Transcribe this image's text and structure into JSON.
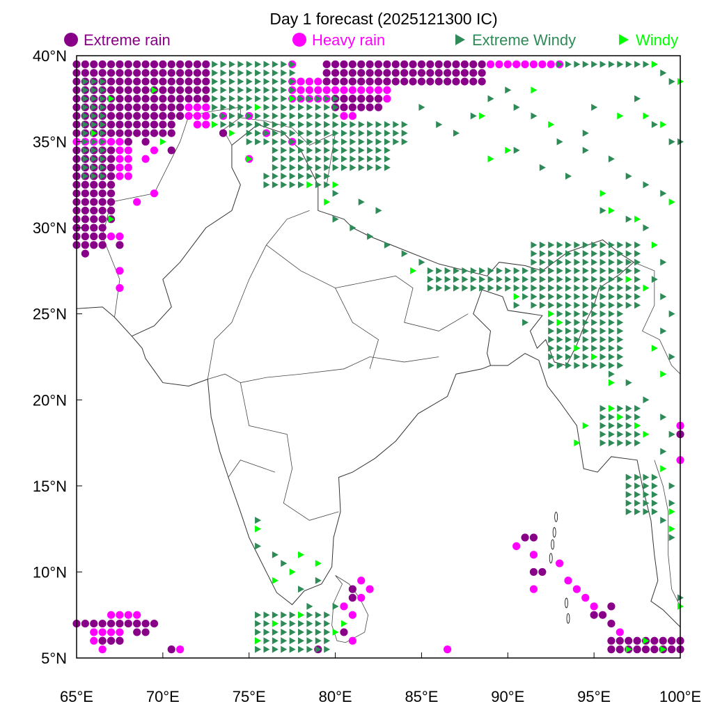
{
  "title": "Day 1 forecast (2025121300 IC)",
  "legend": [
    {
      "label": "Extreme rain",
      "shape": "circle",
      "color": "#880088"
    },
    {
      "label": "Heavy rain",
      "shape": "circle",
      "color": "#FF00FF"
    },
    {
      "label": "Extreme Windy",
      "shape": "triangle-right",
      "color": "#2E8B57"
    },
    {
      "label": "Windy",
      "shape": "triangle-right",
      "color": "#00FF00"
    }
  ],
  "axes": {
    "lon_range": [
      65,
      100
    ],
    "lat_range": [
      5,
      40
    ],
    "x_ticks": [
      "65°E",
      "70°E",
      "75°E",
      "80°E",
      "85°E",
      "90°E",
      "95°E",
      "100°E"
    ],
    "x_tick_values": [
      65,
      70,
      75,
      80,
      85,
      90,
      95,
      100
    ],
    "y_ticks": [
      "5°N",
      "10°N",
      "15°N",
      "20°N",
      "25°N",
      "30°N",
      "35°N",
      "40°N"
    ],
    "y_tick_values": [
      5,
      10,
      15,
      20,
      25,
      30,
      35,
      40
    ]
  },
  "markers": {
    "grid_step_deg": 0.5,
    "heavy_rain": {
      "blocks": [
        [
          77.5,
          83,
          37.5,
          38.5
        ],
        [
          89,
          93,
          39.5,
          39.5
        ],
        [
          67,
          68.5,
          7.5,
          7.5
        ],
        [
          66,
          67.5,
          6,
          6.5
        ],
        [
          65,
          68,
          33,
          35
        ],
        [
          70,
          72.5,
          36.5,
          37
        ]
      ],
      "points": [
        [
          77.5,
          39.5
        ],
        [
          67.5,
          27.5
        ],
        [
          67.5,
          26.5
        ],
        [
          68.5,
          31.5
        ],
        [
          69.5,
          32
        ],
        [
          66.5,
          29
        ],
        [
          67,
          29.5
        ],
        [
          67.5,
          29.5
        ],
        [
          71,
          5.5
        ],
        [
          66.5,
          5.5
        ],
        [
          86.5,
          5.5
        ],
        [
          81.5,
          9.5
        ],
        [
          80.5,
          8
        ],
        [
          81,
          7.5
        ],
        [
          81.5,
          8.5
        ],
        [
          81,
          6
        ],
        [
          82,
          9
        ],
        [
          90.5,
          11.5
        ],
        [
          91.5,
          11
        ],
        [
          91.5,
          9
        ],
        [
          93,
          10.5
        ],
        [
          93.5,
          9.5
        ],
        [
          94,
          9
        ],
        [
          94.5,
          8.5
        ],
        [
          95,
          8
        ],
        [
          96.5,
          6.5
        ],
        [
          99.5,
          6
        ],
        [
          100,
          6
        ],
        [
          100,
          16.5
        ],
        [
          100,
          18.5
        ],
        [
          75,
          34
        ],
        [
          75,
          36.5
        ],
        [
          73.5,
          36.5
        ],
        [
          76,
          35.5
        ],
        [
          77.5,
          35
        ],
        [
          72,
          36
        ],
        [
          72.5,
          36
        ],
        [
          80.5,
          36.5
        ],
        [
          81,
          36.5
        ],
        [
          69,
          34
        ],
        [
          69.5,
          34.5
        ],
        [
          68.5,
          7
        ]
      ]
    },
    "extreme_rain": {
      "blocks": [
        [
          65,
          72.5,
          37.5,
          39.5
        ],
        [
          65,
          71,
          36.5,
          37
        ],
        [
          65,
          70.5,
          35.5,
          36
        ],
        [
          65,
          67,
          30.5,
          34.5
        ],
        [
          65,
          66.5,
          29,
          30
        ],
        [
          79.5,
          88.5,
          38.5,
          39.5
        ],
        [
          80,
          82.5,
          37,
          37.5
        ],
        [
          65,
          69.5,
          7,
          7
        ],
        [
          66.5,
          67.5,
          6,
          6
        ],
        [
          96,
          100,
          5.5,
          6
        ]
      ],
      "points": [
        [
          65.5,
          28.5
        ],
        [
          70.5,
          34.5
        ],
        [
          67.5,
          29
        ],
        [
          81,
          9
        ],
        [
          81,
          8.5
        ],
        [
          80.5,
          6.5
        ],
        [
          79,
          5.5
        ],
        [
          70.5,
          5.5
        ],
        [
          91.5,
          12
        ],
        [
          91,
          12
        ],
        [
          91.5,
          10
        ],
        [
          92,
          10
        ],
        [
          96,
          8
        ],
        [
          95.5,
          7.5
        ],
        [
          95,
          7.5
        ],
        [
          96,
          7
        ],
        [
          99,
          5.5
        ],
        [
          100,
          18
        ],
        [
          68.5,
          6.5
        ],
        [
          69,
          6.5
        ],
        [
          73.5,
          35.5
        ],
        [
          69,
          35
        ],
        [
          68,
          35
        ]
      ]
    },
    "extreme_windy": {
      "blocks": [
        [
          73,
          77.5,
          38,
          39.5
        ],
        [
          73,
          80,
          36,
          37.5
        ],
        [
          75,
          84,
          35,
          36
        ],
        [
          76.5,
          83,
          33.5,
          34.5
        ],
        [
          76,
          79.5,
          32.5,
          33
        ],
        [
          85.5,
          93,
          26.5,
          27.5
        ],
        [
          91.5,
          97.5,
          25.5,
          29
        ],
        [
          92.5,
          96.5,
          22,
          25
        ],
        [
          95.5,
          97.5,
          17.5,
          19.5
        ],
        [
          97,
          98.5,
          13.5,
          15.5
        ],
        [
          75.5,
          79.5,
          5.5,
          7.5
        ],
        [
          93,
          98.5,
          39.5,
          39.5
        ],
        [
          65.5,
          66.5,
          33,
          38.5
        ]
      ],
      "points": [
        [
          80,
          32
        ],
        [
          81.5,
          31.5
        ],
        [
          82.5,
          31
        ],
        [
          80,
          30.5
        ],
        [
          81,
          30
        ],
        [
          82,
          29.5
        ],
        [
          83,
          29
        ],
        [
          84,
          28.5
        ],
        [
          85,
          28
        ],
        [
          90,
          38
        ],
        [
          90.5,
          37
        ],
        [
          91.5,
          36.5
        ],
        [
          93,
          35
        ],
        [
          94.5,
          34.5
        ],
        [
          96,
          34
        ],
        [
          97,
          33
        ],
        [
          98,
          32.5
        ],
        [
          99,
          32
        ],
        [
          90.5,
          34.5
        ],
        [
          92,
          33.5
        ],
        [
          93.5,
          33
        ],
        [
          95.5,
          31
        ],
        [
          97,
          30.5
        ],
        [
          98,
          30
        ],
        [
          100,
          35
        ],
        [
          99.5,
          35
        ],
        [
          98.5,
          36
        ],
        [
          97.5,
          37.5
        ],
        [
          99,
          39
        ],
        [
          99.5,
          38.5
        ],
        [
          95,
          37
        ],
        [
          94.5,
          35.5
        ],
        [
          75.5,
          13
        ],
        [
          75.5,
          11.5
        ],
        [
          76.5,
          11
        ],
        [
          77,
          10.5
        ],
        [
          78,
          9
        ],
        [
          79,
          9.5
        ],
        [
          78.5,
          8
        ],
        [
          80,
          8
        ],
        [
          86,
          36
        ],
        [
          87,
          35.5
        ],
        [
          88,
          36.5
        ],
        [
          89,
          37.5
        ],
        [
          85,
          37
        ],
        [
          96,
          21.5
        ],
        [
          97,
          21
        ],
        [
          98,
          20
        ],
        [
          99,
          19
        ],
        [
          99.5,
          18
        ],
        [
          99,
          17
        ],
        [
          99.5,
          15
        ],
        [
          99.5,
          14
        ],
        [
          99,
          13
        ],
        [
          99.5,
          12
        ],
        [
          100,
          8.5
        ],
        [
          91,
          26
        ],
        [
          90.5,
          25.5
        ],
        [
          91,
          24.5
        ],
        [
          99,
          28
        ],
        [
          98.5,
          27
        ],
        [
          99,
          26
        ],
        [
          99.5,
          25
        ],
        [
          99,
          24
        ],
        [
          99.5,
          22.5
        ]
      ]
    },
    "windy": {
      "points": [
        [
          75,
          34
        ],
        [
          73,
          36
        ],
        [
          74,
          35.5
        ],
        [
          78.5,
          32.5
        ],
        [
          79.5,
          31.5
        ],
        [
          84.5,
          27.5
        ],
        [
          88.5,
          36.5
        ],
        [
          89,
          34
        ],
        [
          90,
          34.5
        ],
        [
          91.5,
          38
        ],
        [
          92.5,
          36
        ],
        [
          95.5,
          32
        ],
        [
          96,
          31
        ],
        [
          97.5,
          30.5
        ],
        [
          98.5,
          29
        ],
        [
          99.5,
          31.5
        ],
        [
          96.5,
          36.5
        ],
        [
          98,
          36.5
        ],
        [
          99,
          36
        ],
        [
          100,
          38.5
        ],
        [
          98.5,
          39.5
        ],
        [
          80,
          32.5
        ],
        [
          77.5,
          37.5
        ],
        [
          75.5,
          37
        ],
        [
          69.5,
          38
        ],
        [
          70,
          35
        ],
        [
          66,
          35.5
        ],
        [
          67,
          37.5
        ],
        [
          67,
          30.5
        ],
        [
          75.5,
          6
        ],
        [
          76.5,
          7
        ],
        [
          78,
          7.5
        ],
        [
          80,
          6.5
        ],
        [
          80.5,
          7
        ],
        [
          76.5,
          9.5
        ],
        [
          77.5,
          10
        ],
        [
          78,
          11
        ],
        [
          79,
          10.5
        ],
        [
          75.5,
          12.5
        ],
        [
          92.5,
          25
        ],
        [
          93,
          24.5
        ],
        [
          94,
          23
        ],
        [
          95,
          22.5
        ],
        [
          96,
          21
        ],
        [
          94.5,
          18.5
        ],
        [
          94,
          17.5
        ],
        [
          96,
          19.5
        ],
        [
          97.5,
          18.5
        ],
        [
          98,
          18
        ],
        [
          99,
          16
        ],
        [
          99.5,
          13.5
        ],
        [
          99.5,
          12.5
        ],
        [
          100,
          8
        ],
        [
          97,
          5.5
        ],
        [
          98,
          6
        ],
        [
          99,
          5.5
        ],
        [
          96.5,
          19
        ],
        [
          90.5,
          26
        ],
        [
          97,
          27
        ],
        [
          98,
          26.5
        ],
        [
          98.5,
          23
        ],
        [
          99,
          21.5
        ]
      ]
    }
  }
}
